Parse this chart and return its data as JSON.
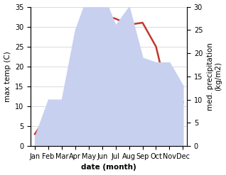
{
  "months": [
    "Jan",
    "Feb",
    "Mar",
    "Apr",
    "May",
    "Jun",
    "Jul",
    "Aug",
    "Sep",
    "Oct",
    "Nov",
    "Dec"
  ],
  "temperature": [
    3,
    8,
    10.5,
    23,
    25,
    33,
    32,
    30.5,
    31,
    25,
    11,
    11
  ],
  "precipitation": [
    2,
    10,
    10,
    25,
    33,
    33,
    26,
    30,
    19,
    18,
    18,
    13
  ],
  "temp_color": "#c0392b",
  "precip_color_fill": "#c8d0f0",
  "ylabel_left": "max temp (C)",
  "ylabel_right": "med. precipitation\n(kg/m2)",
  "xlabel": "date (month)",
  "ylim_left": [
    0,
    35
  ],
  "ylim_right": [
    0,
    30
  ],
  "yticks_left": [
    0,
    5,
    10,
    15,
    20,
    25,
    30,
    35
  ],
  "yticks_right": [
    0,
    5,
    10,
    15,
    20,
    25,
    30
  ],
  "label_fontsize": 7.5,
  "tick_fontsize": 7
}
